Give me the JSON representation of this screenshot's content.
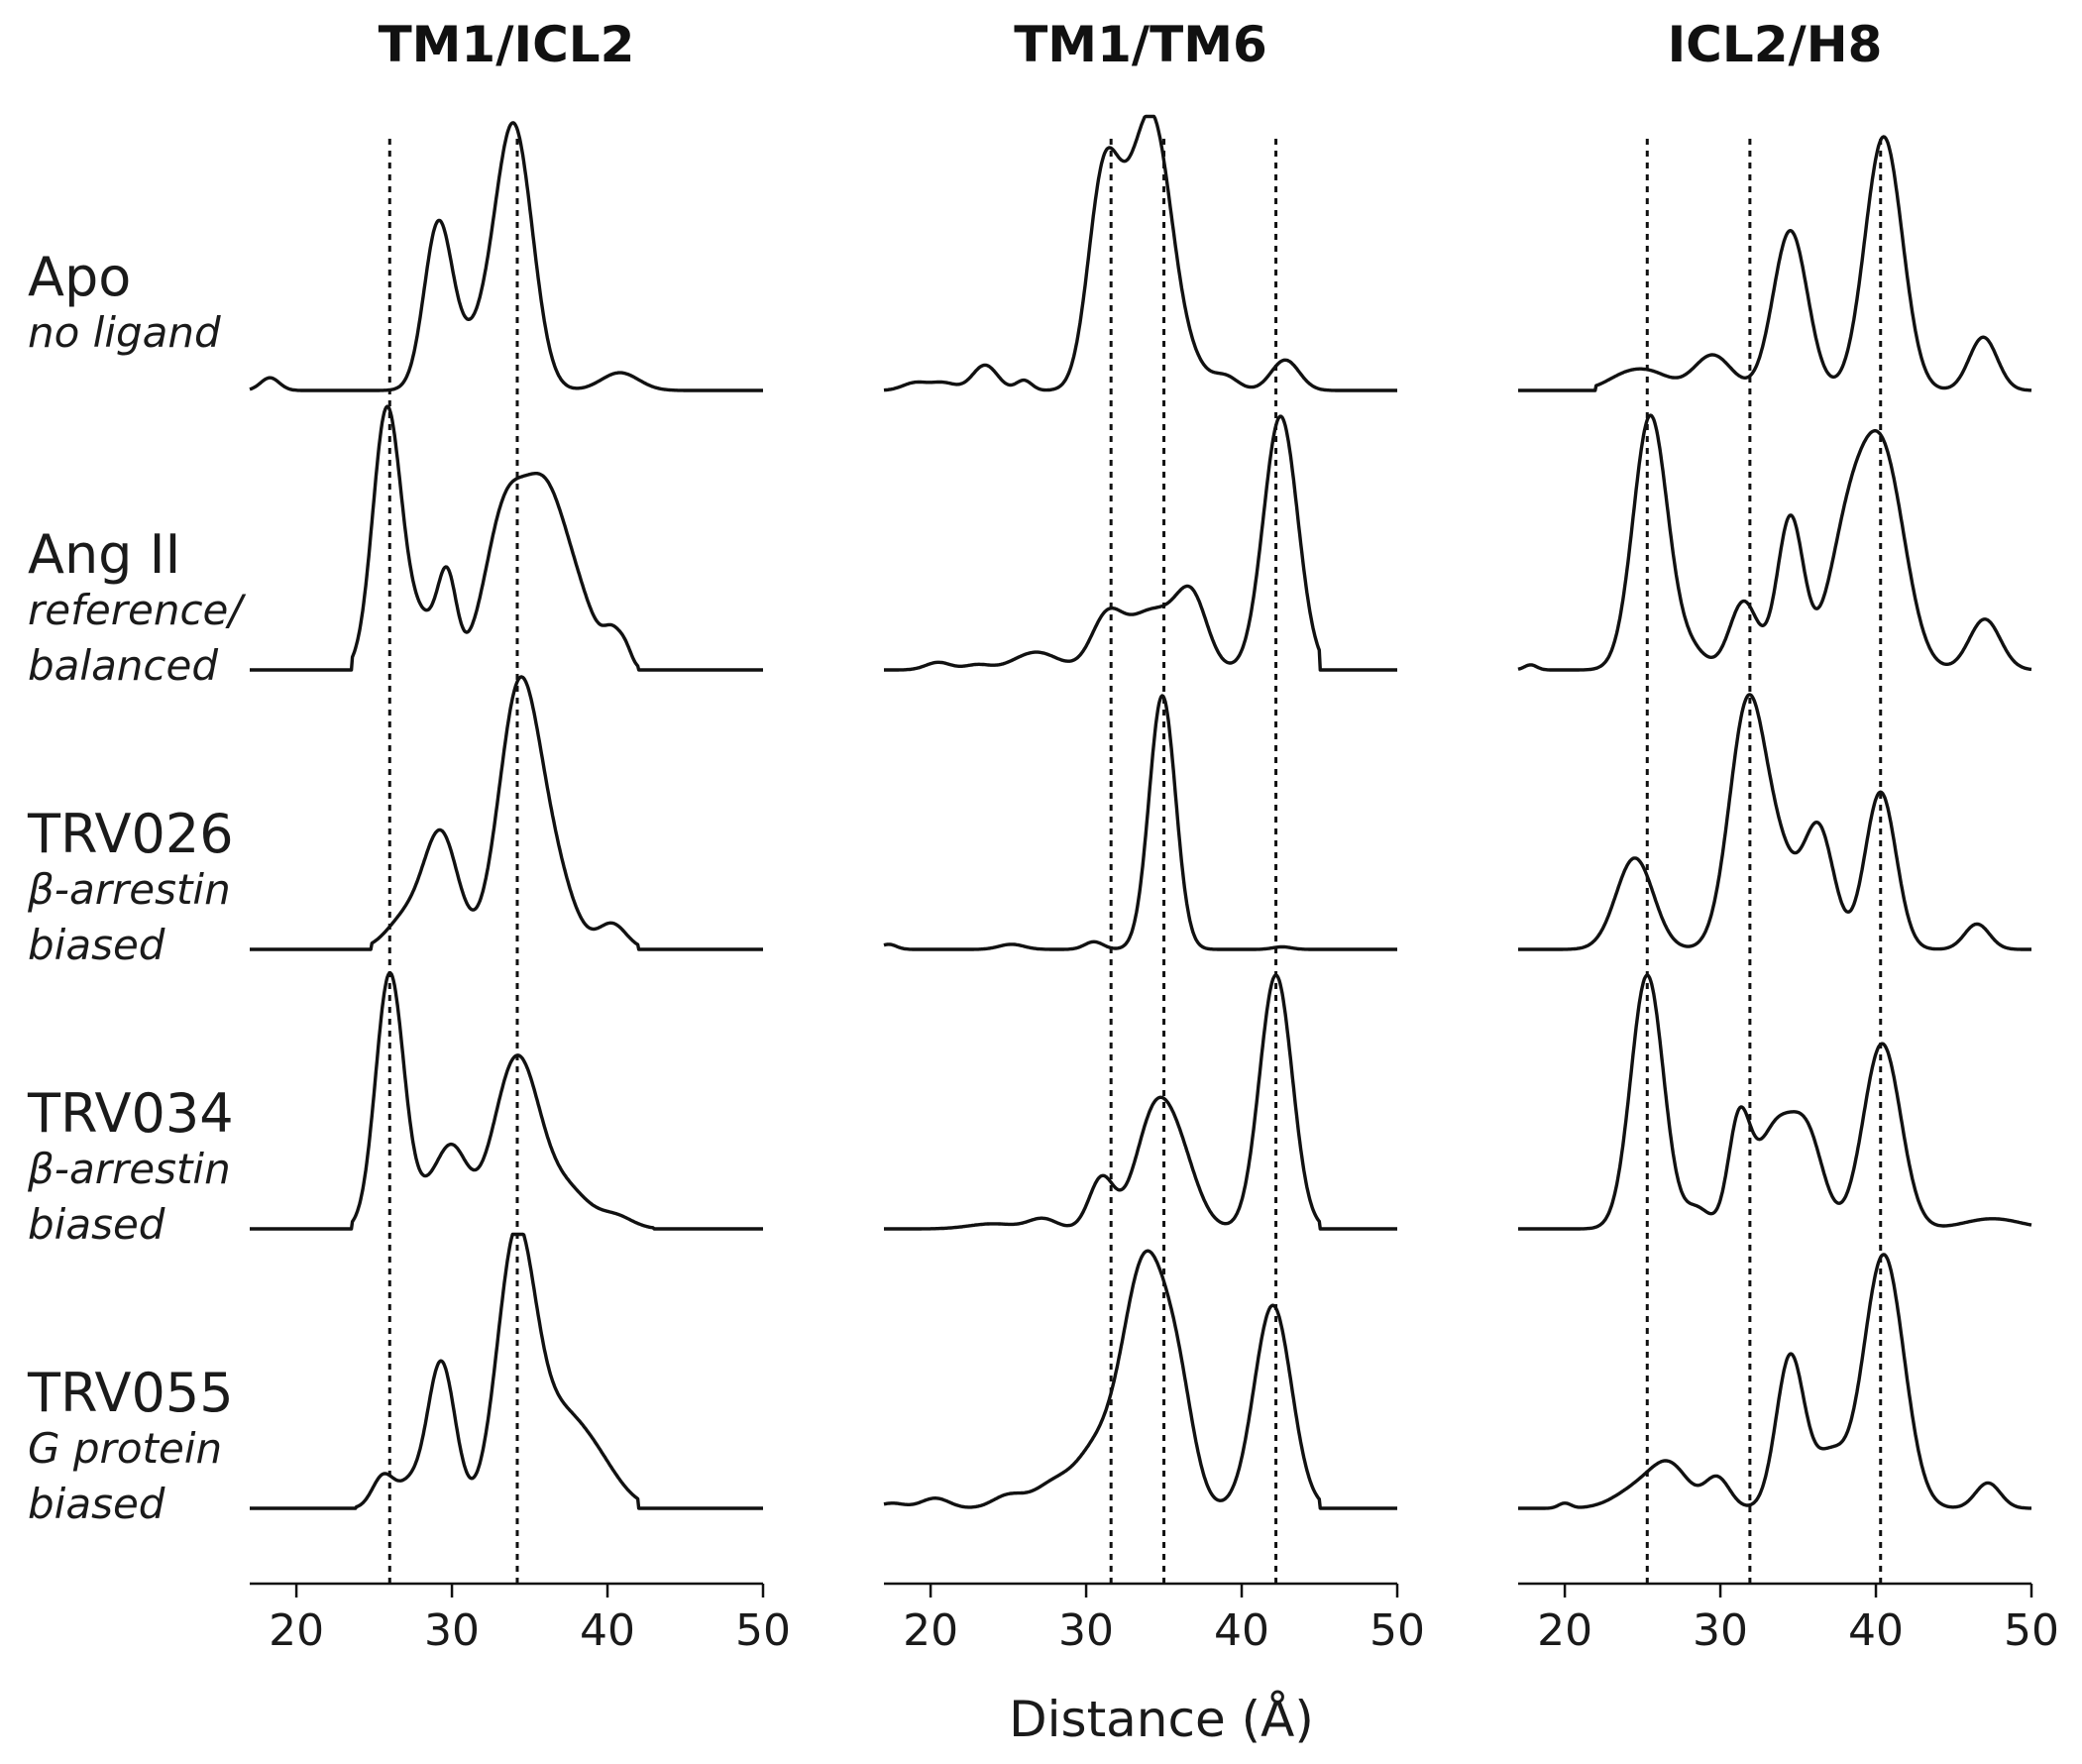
{
  "chart_data": {
    "type": "line",
    "xlabel": "Distance (Å)",
    "xlim": [
      17,
      50
    ],
    "xticks": [
      20,
      30,
      40,
      50
    ],
    "grid": false,
    "rows": [
      {
        "name": "Apo",
        "subtitle": [
          "no ligand"
        ]
      },
      {
        "name": "Ang II",
        "subtitle": [
          "reference/",
          "balanced"
        ]
      },
      {
        "name": "TRV026",
        "subtitle": [
          "β-arrestin",
          "biased"
        ]
      },
      {
        "name": "TRV034",
        "subtitle": [
          "β-arrestin",
          "biased"
        ]
      },
      {
        "name": "TRV055",
        "subtitle": [
          "G protein",
          "biased"
        ]
      }
    ],
    "panels": [
      {
        "title": "TM1/ICL2",
        "reference_lines": [
          26.0,
          34.2
        ],
        "series": [
          {
            "row": "Apo",
            "peaks": [
              [
                18.3,
                0.05,
                0.6
              ],
              [
                29.1,
                0.61,
                0.9
              ],
              [
                34.0,
                1.0,
                1.2
              ],
              [
                31.5,
                0.18,
                1.6
              ],
              [
                40.8,
                0.07,
                1.2
              ]
            ]
          },
          {
            "row": "Ang II",
            "peaks": [
              [
                25.8,
                1.0,
                0.9
              ],
              [
                28.0,
                0.2,
                1.2
              ],
              [
                29.7,
                0.32,
                0.6
              ],
              [
                33.4,
                0.6,
                1.3
              ],
              [
                35.9,
                0.6,
                1.3
              ],
              [
                38.0,
                0.25,
                1.3
              ],
              [
                40.4,
                0.12,
                0.6
              ],
              [
                41.2,
                0.05,
                0.4
              ]
            ],
            "floor_from": 23.6,
            "floor_to": 42.0
          },
          {
            "row": "TRV026",
            "peaks": [
              [
                29.3,
                0.45,
                1.1
              ],
              [
                27.0,
                0.12,
                1.2
              ],
              [
                34.3,
                1.0,
                1.3
              ],
              [
                36.5,
                0.28,
                1.3
              ],
              [
                40.3,
                0.1,
                0.9
              ]
            ],
            "floor_from": 24.8,
            "floor_to": 42.0
          },
          {
            "row": "TRV034",
            "peaks": [
              [
                26.0,
                1.0,
                0.9
              ],
              [
                28.2,
                0.1,
                1.0
              ],
              [
                30.0,
                0.3,
                1.0
              ],
              [
                34.2,
                0.68,
                1.5
              ],
              [
                37.6,
                0.13,
                1.3
              ],
              [
                40.5,
                0.05,
                1.1
              ]
            ],
            "floor_from": 23.6,
            "floor_to": 43.0
          },
          {
            "row": "TRV055",
            "peaks": [
              [
                25.6,
                0.13,
                0.7
              ],
              [
                27.2,
                0.08,
                0.7
              ],
              [
                29.3,
                0.58,
                0.9
              ],
              [
                34.1,
                1.0,
                1.2
              ],
              [
                36.8,
                0.35,
                1.8
              ],
              [
                39.5,
                0.12,
                1.5
              ]
            ],
            "floor_from": 23.8,
            "floor_to": 42.0
          }
        ]
      },
      {
        "title": "TM1/TM6",
        "reference_lines": [
          31.6,
          35.0,
          42.2
        ],
        "series": [
          {
            "row": "Apo",
            "peaks": [
              [
                19.0,
                0.03,
                0.8
              ],
              [
                20.8,
                0.03,
                0.8
              ],
              [
                23.5,
                0.1,
                0.8
              ],
              [
                26.0,
                0.04,
                0.5
              ],
              [
                31.1,
                0.8,
                1.0
              ],
              [
                34.3,
                1.0,
                1.2
              ],
              [
                32.6,
                0.28,
                1.0
              ],
              [
                36.5,
                0.1,
                1.2
              ],
              [
                39.0,
                0.05,
                0.8
              ],
              [
                42.8,
                0.12,
                0.9
              ]
            ]
          },
          {
            "row": "Ang II",
            "peaks": [
              [
                20.5,
                0.03,
                0.8
              ],
              [
                23.0,
                0.02,
                0.8
              ],
              [
                26.8,
                0.07,
                1.4
              ],
              [
                31.3,
                0.19,
                1.0
              ],
              [
                34.2,
                0.23,
                1.6
              ],
              [
                36.8,
                0.26,
                1.0
              ],
              [
                42.5,
                1.0,
                1.1
              ]
            ],
            "floor_from": 17.0,
            "floor_to": 45.0
          },
          {
            "row": "TRV026",
            "peaks": [
              [
                17.3,
                0.02,
                0.5
              ],
              [
                25.2,
                0.02,
                0.8
              ],
              [
                30.5,
                0.03,
                0.6
              ],
              [
                34.9,
                1.0,
                0.85
              ],
              [
                42.6,
                0.01,
                0.6
              ]
            ],
            "floor_from": 17.0,
            "floor_to": 50.0
          },
          {
            "row": "TRV034",
            "peaks": [
              [
                24.0,
                0.02,
                1.5
              ],
              [
                27.2,
                0.04,
                0.9
              ],
              [
                31.0,
                0.2,
                0.8
              ],
              [
                34.3,
                0.4,
                1.2
              ],
              [
                36.0,
                0.25,
                1.2
              ],
              [
                42.2,
                1.0,
                1.05
              ]
            ],
            "floor_from": 17.0,
            "floor_to": 45.0
          },
          {
            "row": "TRV055",
            "peaks": [
              [
                17.5,
                0.02,
                0.8
              ],
              [
                20.3,
                0.04,
                0.9
              ],
              [
                25.0,
                0.05,
                1.0
              ],
              [
                28.0,
                0.1,
                1.3
              ],
              [
                30.5,
                0.18,
                1.2
              ],
              [
                33.8,
                0.98,
                1.5
              ],
              [
                36.0,
                0.3,
                1.0
              ],
              [
                42.0,
                0.8,
                1.2
              ]
            ],
            "floor_from": 17.0,
            "floor_to": 45.0
          }
        ]
      },
      {
        "title": "ICL2/H8",
        "reference_lines": [
          25.3,
          31.9,
          40.3
        ],
        "series": [
          {
            "row": "Apo",
            "peaks": [
              [
                24.0,
                0.06,
                1.3
              ],
              [
                25.8,
                0.05,
                1.2
              ],
              [
                29.5,
                0.14,
                1.2
              ],
              [
                34.5,
                0.63,
                1.1
              ],
              [
                40.5,
                1.0,
                1.2
              ],
              [
                46.9,
                0.21,
                0.9
              ]
            ],
            "floor_from": 22.0,
            "floor_to": 50.0
          },
          {
            "row": "Ang II",
            "peaks": [
              [
                17.8,
                0.02,
                0.4
              ],
              [
                25.5,
                1.0,
                1.1
              ],
              [
                28.0,
                0.08,
                1.0
              ],
              [
                31.5,
                0.27,
                0.9
              ],
              [
                34.5,
                0.6,
                0.85
              ],
              [
                38.2,
                0.5,
                1.3
              ],
              [
                40.5,
                0.8,
                1.4
              ],
              [
                47.0,
                0.2,
                1.0
              ]
            ],
            "floor_from": 17.0,
            "floor_to": 50.0
          },
          {
            "row": "TRV026",
            "peaks": [
              [
                24.5,
                0.36,
                1.2
              ],
              [
                31.8,
                0.98,
                1.2
              ],
              [
                34.0,
                0.25,
                1.0
              ],
              [
                36.3,
                0.48,
                1.0
              ],
              [
                40.3,
                0.62,
                1.0
              ],
              [
                46.5,
                0.1,
                0.8
              ]
            ],
            "floor_from": 17.0,
            "floor_to": 50.0
          },
          {
            "row": "TRV034",
            "peaks": [
              [
                25.3,
                1.0,
                1.05
              ],
              [
                28.5,
                0.08,
                0.8
              ],
              [
                31.2,
                0.4,
                0.7
              ],
              [
                33.6,
                0.4,
                1.3
              ],
              [
                35.7,
                0.3,
                1.0
              ],
              [
                40.4,
                0.73,
                1.2
              ],
              [
                47.5,
                0.04,
                1.8
              ]
            ],
            "floor_from": 17.0,
            "floor_to": 50.0
          },
          {
            "row": "TRV055",
            "peaks": [
              [
                20.0,
                0.02,
                0.4
              ],
              [
                24.8,
                0.08,
                1.5
              ],
              [
                26.8,
                0.15,
                1.2
              ],
              [
                29.8,
                0.12,
                0.8
              ],
              [
                34.5,
                0.6,
                0.9
              ],
              [
                37.0,
                0.2,
                1.0
              ],
              [
                40.5,
                1.0,
                1.3
              ],
              [
                47.2,
                0.1,
                0.8
              ]
            ],
            "floor_from": 17.0,
            "floor_to": 50.0
          }
        ]
      }
    ]
  }
}
